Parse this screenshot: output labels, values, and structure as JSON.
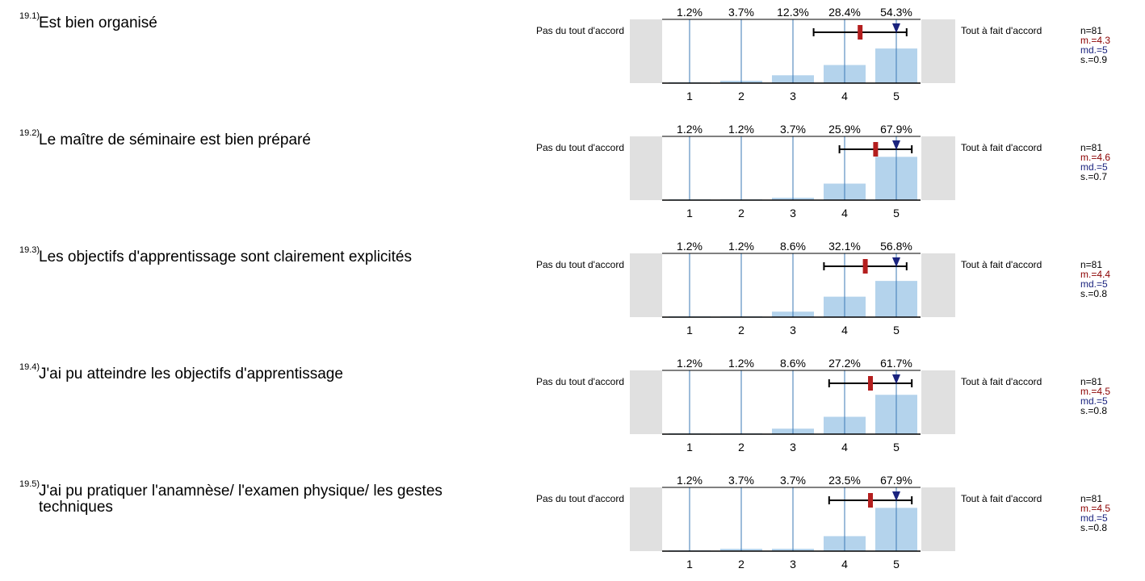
{
  "colors": {
    "bar": "#b4d3ec",
    "gridline": "#3b78b6",
    "sidebox": "#e0e0e0",
    "mean": "#b41e1e",
    "median": "#1a237e",
    "mean_text": "#8b0000",
    "median_text": "#1a237e"
  },
  "scale": {
    "left_label": "Pas du tout d'accord",
    "right_label": "Tout à fait d'accord",
    "ticks": [
      "1",
      "2",
      "3",
      "4",
      "5"
    ]
  },
  "chart_data": [
    {
      "type": "bar",
      "number": "19.1)",
      "question": "Est bien organisé",
      "categories": [
        "1",
        "2",
        "3",
        "4",
        "5"
      ],
      "values": [
        1.2,
        3.7,
        12.3,
        28.4,
        54.3
      ],
      "labels": [
        "1.2%",
        "3.7%",
        "12.3%",
        "28.4%",
        "54.3%"
      ],
      "mean": 4.3,
      "median": 5,
      "sd": 0.9,
      "n_text": "n=81",
      "m_text": "m.=4.3",
      "md_text": "md.=5",
      "s_text": "s.=0.9"
    },
    {
      "type": "bar",
      "number": "19.2)",
      "question": "Le maître de séminaire est bien préparé",
      "categories": [
        "1",
        "2",
        "3",
        "4",
        "5"
      ],
      "values": [
        1.2,
        1.2,
        3.7,
        25.9,
        67.9
      ],
      "labels": [
        "1.2%",
        "1.2%",
        "3.7%",
        "25.9%",
        "67.9%"
      ],
      "mean": 4.6,
      "median": 5,
      "sd": 0.7,
      "n_text": "n=81",
      "m_text": "m.=4.6",
      "md_text": "md.=5",
      "s_text": "s.=0.7"
    },
    {
      "type": "bar",
      "number": "19.3)",
      "question": "Les objectifs d'apprentissage sont clairement explicités",
      "categories": [
        "1",
        "2",
        "3",
        "4",
        "5"
      ],
      "values": [
        1.2,
        1.2,
        8.6,
        32.1,
        56.8
      ],
      "labels": [
        "1.2%",
        "1.2%",
        "8.6%",
        "32.1%",
        "56.8%"
      ],
      "mean": 4.4,
      "median": 5,
      "sd": 0.8,
      "n_text": "n=81",
      "m_text": "m.=4.4",
      "md_text": "md.=5",
      "s_text": "s.=0.8"
    },
    {
      "type": "bar",
      "number": "19.4)",
      "question": "J'ai pu atteindre les objectifs d'apprentissage",
      "categories": [
        "1",
        "2",
        "3",
        "4",
        "5"
      ],
      "values": [
        1.2,
        1.2,
        8.6,
        27.2,
        61.7
      ],
      "labels": [
        "1.2%",
        "1.2%",
        "8.6%",
        "27.2%",
        "61.7%"
      ],
      "mean": 4.5,
      "median": 5,
      "sd": 0.8,
      "n_text": "n=81",
      "m_text": "m.=4.5",
      "md_text": "md.=5",
      "s_text": "s.=0.8"
    },
    {
      "type": "bar",
      "number": "19.5)",
      "question": "J'ai pu pratiquer l'anamnèse/ l'examen physique/ les gestes techniques",
      "categories": [
        "1",
        "2",
        "3",
        "4",
        "5"
      ],
      "values": [
        1.2,
        3.7,
        3.7,
        23.5,
        67.9
      ],
      "labels": [
        "1.2%",
        "3.7%",
        "3.7%",
        "23.5%",
        "67.9%"
      ],
      "mean": 4.5,
      "median": 5,
      "sd": 0.8,
      "n_text": "n=81",
      "m_text": "m.=4.5",
      "md_text": "md.=5",
      "s_text": "s.=0.8"
    }
  ]
}
